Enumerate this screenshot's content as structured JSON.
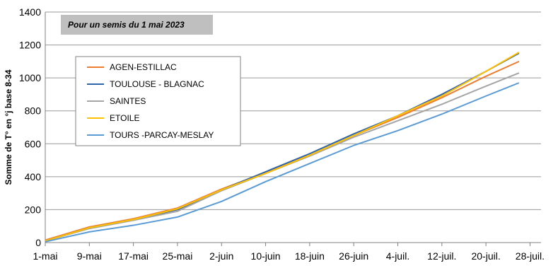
{
  "chart_data": {
    "type": "line",
    "annotation": "Pour un semis du 1 mai 2023",
    "y_label": "Somme de T° en °j base 8-34",
    "x": [
      0,
      8,
      16,
      24,
      32,
      40,
      48,
      56,
      64,
      72,
      80,
      86
    ],
    "xlim": [
      0,
      90
    ],
    "xticks": [
      {
        "value": 0,
        "label": "1-mai"
      },
      {
        "value": 8,
        "label": "9-mai"
      },
      {
        "value": 16,
        "label": "17-mai"
      },
      {
        "value": 24,
        "label": "25-mai"
      },
      {
        "value": 32,
        "label": "2-juin"
      },
      {
        "value": 40,
        "label": "10-juin"
      },
      {
        "value": 48,
        "label": "18-juin"
      },
      {
        "value": 56,
        "label": "26-juin"
      },
      {
        "value": 64,
        "label": "4-juil."
      },
      {
        "value": 72,
        "label": "12-juil."
      },
      {
        "value": 80,
        "label": "20-juil."
      },
      {
        "value": 88,
        "label": "28-juil."
      }
    ],
    "ylim": [
      0,
      1400
    ],
    "yticks": [
      0,
      200,
      400,
      600,
      800,
      1000,
      1200,
      1400
    ],
    "grid": true,
    "legend": "upper left",
    "series": [
      {
        "name": "AGEN-ESTILLAC",
        "color": "#ed7d31",
        "values": [
          15,
          95,
          145,
          210,
          325,
          425,
          530,
          650,
          760,
          880,
          1010,
          1100
        ]
      },
      {
        "name": "TOULOUSE - BLAGNAC",
        "color": "#2f65a8",
        "values": [
          10,
          90,
          140,
          200,
          320,
          430,
          540,
          660,
          770,
          900,
          1040,
          1150
        ]
      },
      {
        "name": "SAINTES",
        "color": "#a5a5a5",
        "values": [
          10,
          85,
          135,
          190,
          315,
          420,
          525,
          640,
          740,
          840,
          950,
          1030
        ]
      },
      {
        "name": "ETOILE",
        "color": "#ffc000",
        "values": [
          10,
          90,
          140,
          205,
          320,
          420,
          530,
          650,
          770,
          890,
          1040,
          1155
        ]
      },
      {
        "name": "TOURS -PARCAY-MESLAY",
        "color": "#5b9bd5",
        "values": [
          5,
          65,
          105,
          155,
          250,
          370,
          480,
          590,
          680,
          780,
          890,
          970
        ]
      }
    ]
  }
}
